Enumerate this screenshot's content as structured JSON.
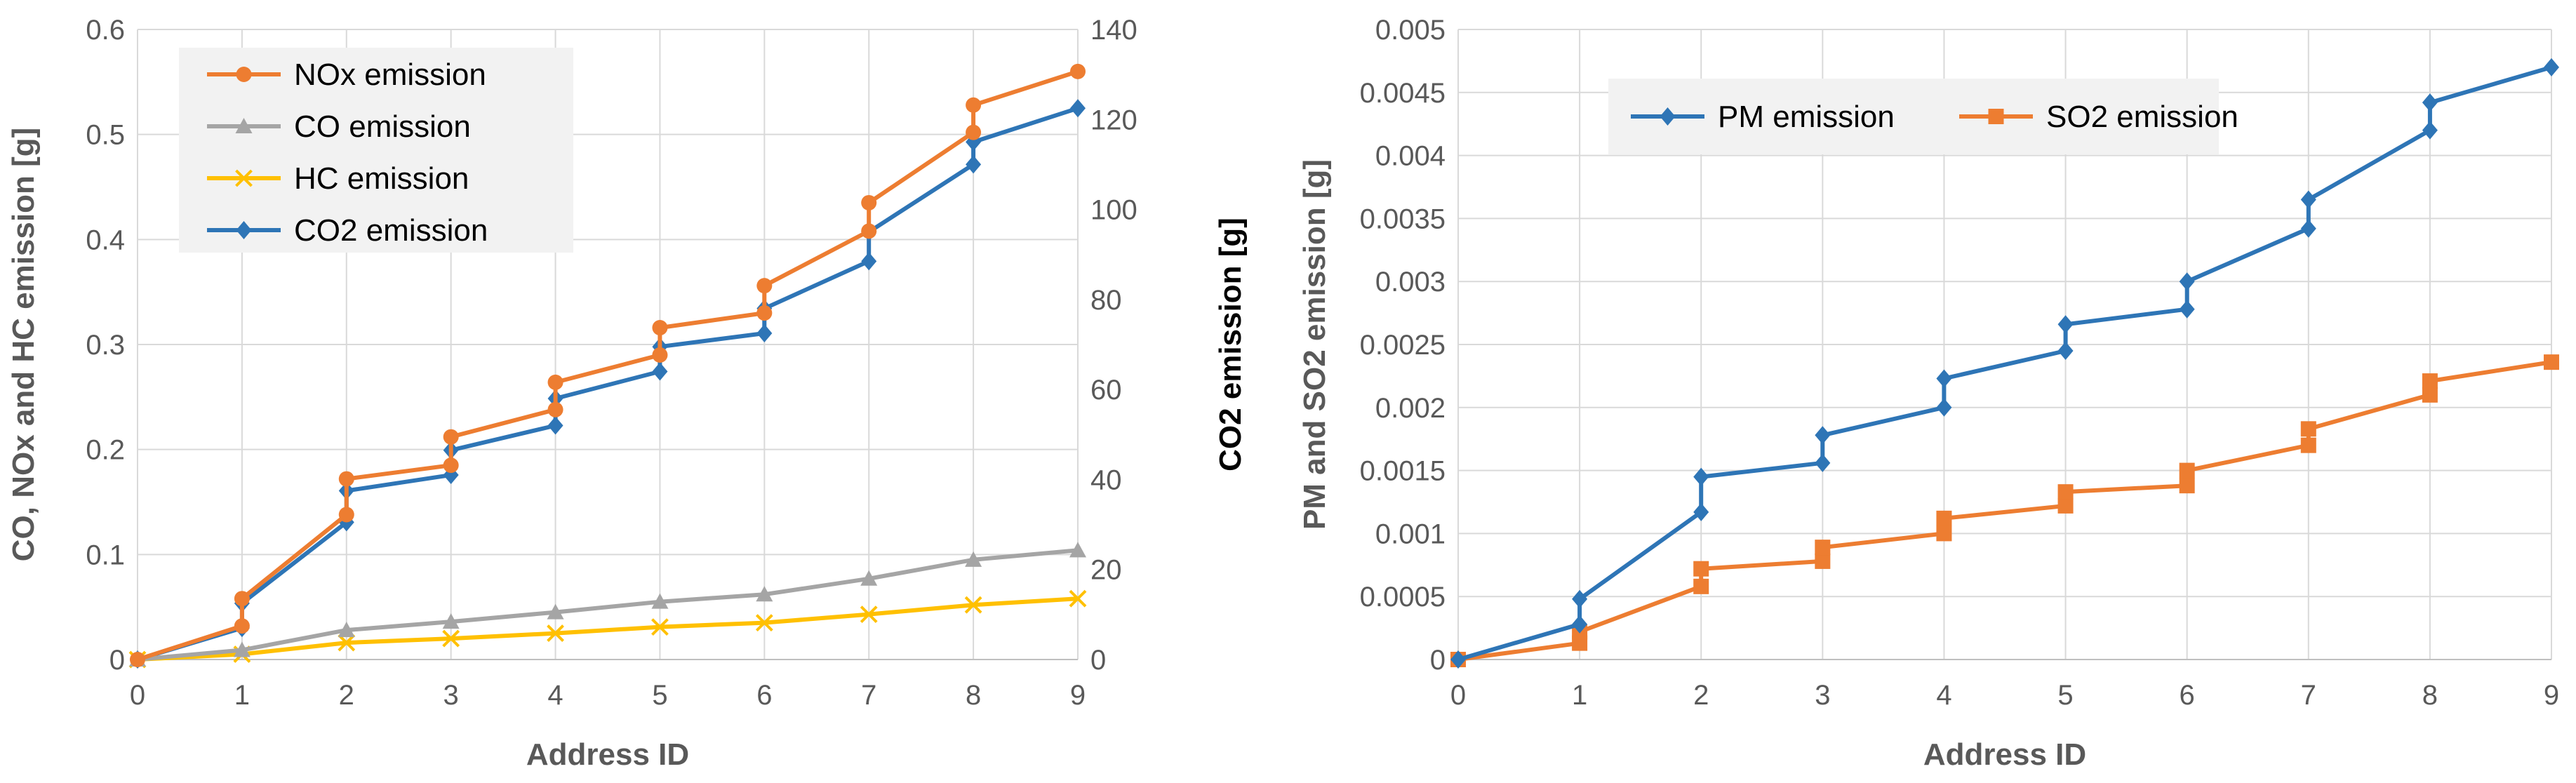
{
  "chart_data": [
    {
      "type": "line",
      "xlabel": "Address ID",
      "ylabel": "CO, NOx and HC emission [g]",
      "y2label": "CO2 emission [g]",
      "x": [
        0,
        1,
        2,
        3,
        4,
        5,
        6,
        7,
        8,
        9
      ],
      "xticks": [
        "0",
        "1",
        "2",
        "3",
        "4",
        "5",
        "6",
        "7",
        "8",
        "9"
      ],
      "ylim": [
        0,
        0.6
      ],
      "yticks": [
        "0",
        "0.1",
        "0.2",
        "0.3",
        "0.4",
        "0.5",
        "0.6"
      ],
      "y2lim": [
        0,
        140
      ],
      "y2ticks": [
        "0",
        "20",
        "40",
        "60",
        "80",
        "100",
        "120",
        "140"
      ],
      "legend_position": "top-left",
      "series": [
        {
          "name": "NOx emission",
          "axis": "left",
          "color": "#ED7D31",
          "marker": "circle",
          "points": [
            [
              0,
              0
            ],
            [
              1,
              0.032
            ],
            [
              1,
              0.058
            ],
            [
              2,
              0.138
            ],
            [
              2,
              0.172
            ],
            [
              3,
              0.185
            ],
            [
              3,
              0.212
            ],
            [
              4,
              0.238
            ],
            [
              4,
              0.264
            ],
            [
              5,
              0.29
            ],
            [
              5,
              0.316
            ],
            [
              6,
              0.33
            ],
            [
              6,
              0.356
            ],
            [
              7,
              0.408
            ],
            [
              7,
              0.435
            ],
            [
              8,
              0.502
            ],
            [
              8,
              0.528
            ],
            [
              9,
              0.56
            ]
          ]
        },
        {
          "name": "CO emission",
          "axis": "left",
          "color": "#A5A5A5",
          "marker": "triangle",
          "points": [
            [
              0,
              0
            ],
            [
              1,
              0.009
            ],
            [
              2,
              0.028
            ],
            [
              3,
              0.036
            ],
            [
              4,
              0.045
            ],
            [
              5,
              0.055
            ],
            [
              6,
              0.062
            ],
            [
              7,
              0.077
            ],
            [
              8,
              0.095
            ],
            [
              9,
              0.104
            ]
          ]
        },
        {
          "name": "HC emission",
          "axis": "left",
          "color": "#FFC000",
          "marker": "x",
          "points": [
            [
              0,
              0
            ],
            [
              1,
              0.005
            ],
            [
              2,
              0.016
            ],
            [
              3,
              0.02
            ],
            [
              4,
              0.025
            ],
            [
              5,
              0.031
            ],
            [
              6,
              0.035
            ],
            [
              7,
              0.043
            ],
            [
              8,
              0.052
            ],
            [
              9,
              0.058
            ]
          ]
        },
        {
          "name": "CO2 emission",
          "axis": "right",
          "color": "#2E75B6",
          "marker": "diamond",
          "points": [
            [
              0,
              0
            ],
            [
              1,
              7
            ],
            [
              1,
              12.5
            ],
            [
              2,
              30.5
            ],
            [
              2,
              37.5
            ],
            [
              3,
              41
            ],
            [
              3,
              46.5
            ],
            [
              4,
              52
            ],
            [
              4,
              58
            ],
            [
              5,
              64
            ],
            [
              5,
              69.5
            ],
            [
              6,
              72.5
            ],
            [
              6,
              78
            ],
            [
              7,
              88.5
            ],
            [
              7,
              95
            ],
            [
              8,
              110
            ],
            [
              8,
              115
            ],
            [
              9,
              122.5
            ]
          ]
        }
      ]
    },
    {
      "type": "line",
      "xlabel": "Address ID",
      "ylabel": "PM and SO2 emission [g]",
      "x": [
        0,
        1,
        2,
        3,
        4,
        5,
        6,
        7,
        8,
        9
      ],
      "xticks": [
        "0",
        "1",
        "2",
        "3",
        "4",
        "5",
        "6",
        "7",
        "8",
        "9"
      ],
      "ylim": [
        0,
        0.005
      ],
      "yticks": [
        "0",
        "0.0005",
        "0.001",
        "0.0015",
        "0.002",
        "0.0025",
        "0.003",
        "0.0035",
        "0.004",
        "0.0045",
        "0.005"
      ],
      "legend_position": "top-left",
      "series": [
        {
          "name": "PM emission",
          "axis": "left",
          "color": "#2E75B6",
          "marker": "diamond",
          "points": [
            [
              0,
              0
            ],
            [
              1,
              0.00028
            ],
            [
              1,
              0.00048
            ],
            [
              2,
              0.00117
            ],
            [
              2,
              0.00145
            ],
            [
              3,
              0.00156
            ],
            [
              3,
              0.00178
            ],
            [
              4,
              0.002
            ],
            [
              4,
              0.00223
            ],
            [
              5,
              0.00245
            ],
            [
              5,
              0.00266
            ],
            [
              6,
              0.00278
            ],
            [
              6,
              0.003
            ],
            [
              7,
              0.00342
            ],
            [
              7,
              0.00365
            ],
            [
              8,
              0.0042
            ],
            [
              8,
              0.00442
            ],
            [
              9,
              0.0047
            ]
          ]
        },
        {
          "name": "SO2 emission",
          "axis": "left",
          "color": "#ED7D31",
          "marker": "square",
          "points": [
            [
              0,
              0
            ],
            [
              1,
              0.00013
            ],
            [
              1,
              0.00022
            ],
            [
              2,
              0.00058
            ],
            [
              2,
              0.00072
            ],
            [
              3,
              0.00078
            ],
            [
              3,
              0.00089
            ],
            [
              4,
              0.001
            ],
            [
              4,
              0.00112
            ],
            [
              5,
              0.00122
            ],
            [
              5,
              0.00133
            ],
            [
              6,
              0.00138
            ],
            [
              6,
              0.0015
            ],
            [
              7,
              0.0017
            ],
            [
              7,
              0.00183
            ],
            [
              8,
              0.0021
            ],
            [
              8,
              0.00221
            ],
            [
              9,
              0.00236
            ]
          ]
        }
      ]
    }
  ]
}
